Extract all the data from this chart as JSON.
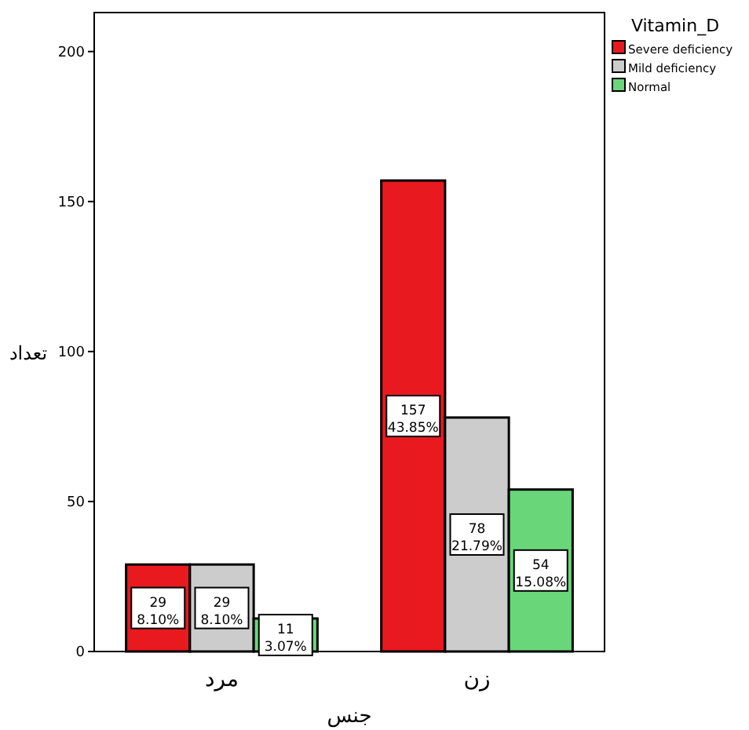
{
  "chart_data": {
    "type": "bar",
    "xlabel": "جنس",
    "ylabel": "تعداد",
    "legend_title": "Vitamin_D",
    "categories": [
      "مرد",
      "زن"
    ],
    "series": [
      {
        "name": "Severe deficiency",
        "color": "#e8191f",
        "values": [
          29,
          157
        ],
        "value_labels": [
          "29\n8.10%",
          "157\n43.85%"
        ]
      },
      {
        "name": "Mild deficiency",
        "color": "#cccccc",
        "values": [
          29,
          78
        ],
        "value_labels": [
          "29\n8.10%",
          "78\n21.79%"
        ]
      },
      {
        "name": "Normal",
        "color": "#6ad67a",
        "values": [
          11,
          54
        ],
        "value_labels": [
          "11\n3.07%",
          "54\n15.08%"
        ]
      }
    ],
    "ylim": [
      0,
      213
    ],
    "yticks": [
      0,
      50,
      100,
      150,
      200
    ],
    "grid": false,
    "legend": "top right"
  }
}
